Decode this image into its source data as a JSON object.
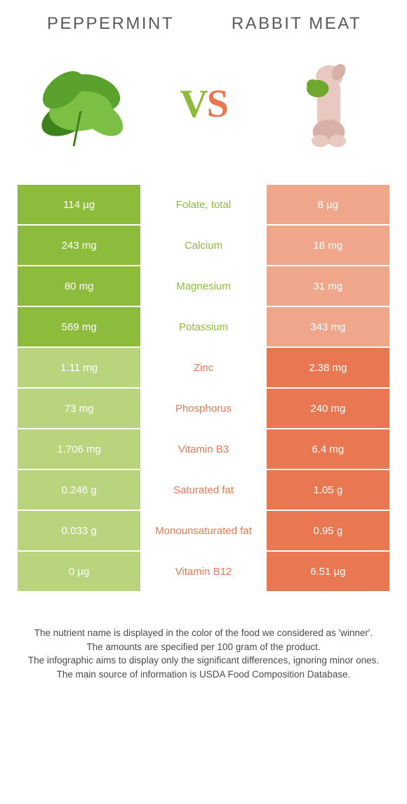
{
  "colors": {
    "left_win": "#8dbb3b",
    "left_dim": "#b8d47d",
    "right_win": "#e97751",
    "right_dim": "#f0a68b"
  },
  "foods": {
    "left": {
      "title": "Peppermint"
    },
    "right": {
      "title": "Rabbit meat"
    }
  },
  "vs": {
    "v": "V",
    "s": "S"
  },
  "rows": [
    {
      "nutrient": "Folate, total",
      "left": "114 µg",
      "right": "8 µg",
      "winner": "left"
    },
    {
      "nutrient": "Calcium",
      "left": "243 mg",
      "right": "18 mg",
      "winner": "left"
    },
    {
      "nutrient": "Magnesium",
      "left": "80 mg",
      "right": "31 mg",
      "winner": "left"
    },
    {
      "nutrient": "Potassium",
      "left": "569 mg",
      "right": "343 mg",
      "winner": "left"
    },
    {
      "nutrient": "Zinc",
      "left": "1.11 mg",
      "right": "2.38 mg",
      "winner": "right"
    },
    {
      "nutrient": "Phosphorus",
      "left": "73 mg",
      "right": "240 mg",
      "winner": "right"
    },
    {
      "nutrient": "Vitamin B3",
      "left": "1.706 mg",
      "right": "6.4 mg",
      "winner": "right"
    },
    {
      "nutrient": "Saturated fat",
      "left": "0.246 g",
      "right": "1.05 g",
      "winner": "right"
    },
    {
      "nutrient": "Monounsaturated fat",
      "left": "0.033 g",
      "right": "0.95 g",
      "winner": "right"
    },
    {
      "nutrient": "Vitamin B12",
      "left": "0 µg",
      "right": "6.51 µg",
      "winner": "right"
    }
  ],
  "footer": {
    "l1": "The nutrient name is displayed in the color of the food we considered as 'winner'.",
    "l2": "The amounts are specified per 100 gram of the product.",
    "l3": "The infographic aims to display only the significant differences, ignoring minor ones.",
    "l4": "The main source of information is USDA Food Composition Database."
  }
}
